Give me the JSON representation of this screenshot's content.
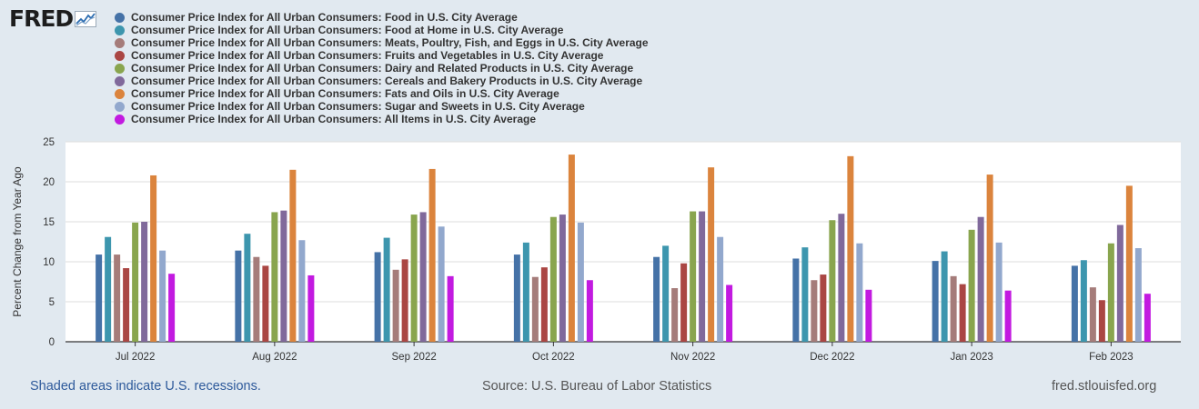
{
  "brand": {
    "name": "FRED"
  },
  "footer": {
    "recessions_note": "Shaded areas indicate U.S. recessions.",
    "source": "Source: U.S. Bureau of Labor Statistics",
    "site": "fred.stlouisfed.org"
  },
  "chart_data": {
    "type": "bar",
    "title": "",
    "xlabel": "",
    "ylabel": "Percent Change from Year Ago",
    "ylim": [
      0,
      25
    ],
    "yticks": [
      0,
      5,
      10,
      15,
      20,
      25
    ],
    "grid": true,
    "legend_position": "top-left",
    "categories": [
      "Jul 2022",
      "Aug 2022",
      "Sep 2022",
      "Oct 2022",
      "Nov 2022",
      "Dec 2022",
      "Jan 2023",
      "Feb 2023"
    ],
    "series": [
      {
        "name": "Consumer Price Index for All Urban Consumers: Food in U.S. City Average",
        "color": "#4572a7",
        "values": [
          10.9,
          11.4,
          11.2,
          10.9,
          10.6,
          10.4,
          10.1,
          9.5
        ]
      },
      {
        "name": "Consumer Price Index for All Urban Consumers: Food at Home in U.S. City Average",
        "color": "#3d96ae",
        "values": [
          13.1,
          13.5,
          13.0,
          12.4,
          12.0,
          11.8,
          11.3,
          10.2
        ]
      },
      {
        "name": "Consumer Price Index for All Urban Consumers: Meats, Poultry, Fish, and Eggs in U.S. City Average",
        "color": "#a57c7a",
        "values": [
          10.9,
          10.6,
          9.0,
          8.1,
          6.7,
          7.7,
          8.2,
          6.8
        ]
      },
      {
        "name": "Consumer Price Index for All Urban Consumers: Fruits and Vegetables in U.S. City Average",
        "color": "#aa4643",
        "values": [
          9.2,
          9.5,
          10.3,
          9.3,
          9.8,
          8.4,
          7.2,
          5.2
        ]
      },
      {
        "name": "Consumer Price Index for All Urban Consumers: Dairy and Related Products in U.S. City Average",
        "color": "#89a54e",
        "values": [
          14.9,
          16.2,
          15.9,
          15.6,
          16.3,
          15.2,
          14.0,
          12.3
        ]
      },
      {
        "name": "Consumer Price Index for All Urban Consumers: Cereals and Bakery Products in U.S. City Average",
        "color": "#80699b",
        "values": [
          15.0,
          16.4,
          16.2,
          15.9,
          16.3,
          16.0,
          15.6,
          14.6
        ]
      },
      {
        "name": "Consumer Price Index for All Urban Consumers: Fats and Oils in U.S. City Average",
        "color": "#db843d",
        "values": [
          20.8,
          21.5,
          21.6,
          23.4,
          21.8,
          23.2,
          20.9,
          19.5
        ]
      },
      {
        "name": "Consumer Price Index for All Urban Consumers: Sugar and Sweets in U.S. City Average",
        "color": "#92a8cd",
        "values": [
          11.4,
          12.7,
          14.4,
          14.9,
          13.1,
          12.3,
          12.4,
          11.7
        ]
      },
      {
        "name": "Consumer Price Index for All Urban Consumers: All Items in U.S. City Average",
        "color": "#c21ae0",
        "values": [
          8.5,
          8.3,
          8.2,
          7.7,
          7.1,
          6.5,
          6.4,
          6.0
        ]
      }
    ]
  }
}
